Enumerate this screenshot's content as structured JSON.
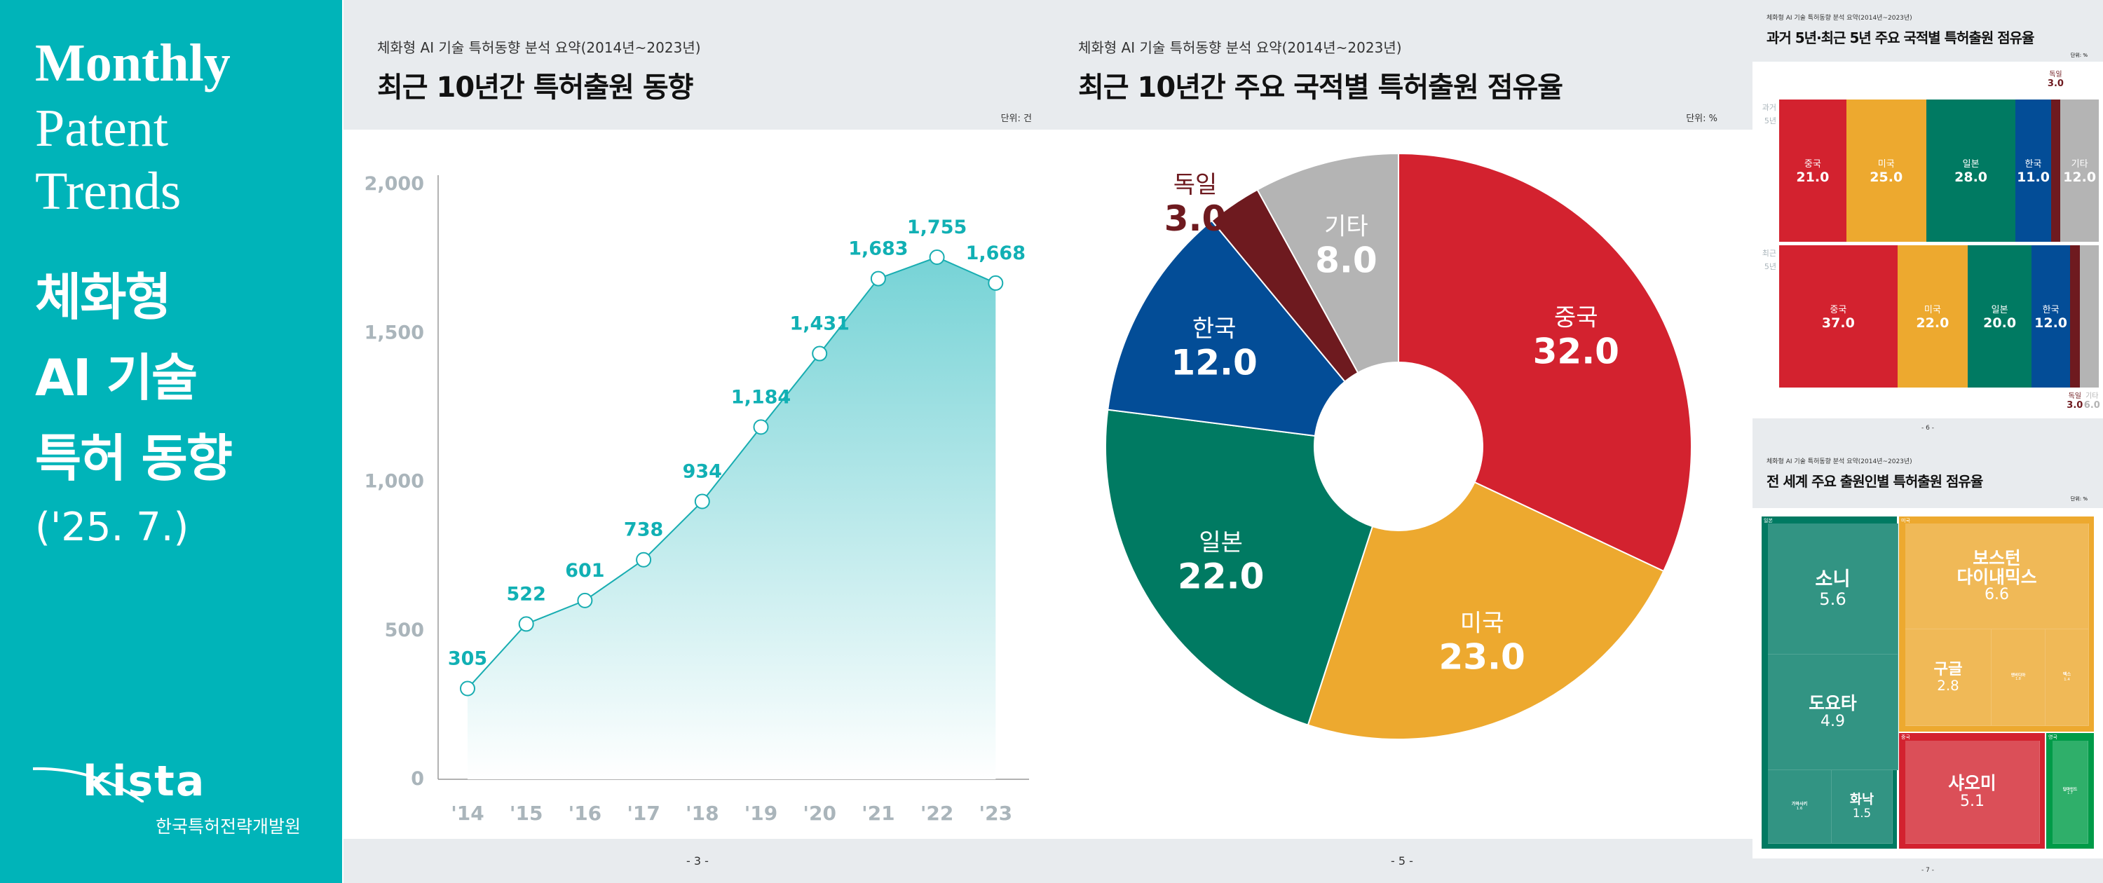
{
  "cover": {
    "title_en": [
      "Monthly",
      "Patent",
      "Trends"
    ],
    "title_ko": [
      "체화형",
      "AI 기술",
      "특허 동향"
    ],
    "date": "('25. 7.)",
    "logo_text": "kista",
    "org": "한국특허전략개발원"
  },
  "colors": {
    "teal": "#00b4b9",
    "china": "#d3222f",
    "usa": "#eda92f",
    "japan": "#007a62",
    "korea": "#034d97",
    "germany": "#6e1a1f",
    "other": "#b4b4b4",
    "uk": "#009b48"
  },
  "page3": {
    "subtitle": "체화형 AI 기술 특허동향 분석 요약(2014년~2023년)",
    "title": "최근 10년간 특허출원 동향",
    "unit": "단위: 건",
    "page": "- 3 -"
  },
  "page5": {
    "subtitle": "체화형 AI 기술 특허동향 분석 요약(2014년~2023년)",
    "title": "최근 10년간 주요 국적별 특허출원 점유율",
    "unit": "단위: %",
    "page": "- 5 -"
  },
  "page6": {
    "subtitle": "체화형 AI 기술 특허동향 분석 요약(2014년~2023년)",
    "title": "과거 5년·최근 5년 주요 국적별 특허출원 점유율",
    "unit": "단위: %",
    "page": "- 6 -"
  },
  "page7": {
    "subtitle": "체화형 AI 기술 특허동향 분석 요약(2014년~2023년)",
    "title": "전 세계 주요 출원인별 특허출원 점유율",
    "unit": "단위: %",
    "page": "- 7 -"
  },
  "chart_data": [
    {
      "type": "area",
      "title": "최근 10년간 특허출원 동향",
      "categories": [
        "'14",
        "'15",
        "'16",
        "'17",
        "'18",
        "'19",
        "'20",
        "'21",
        "'22",
        "'23"
      ],
      "values": [
        305,
        522,
        601,
        738,
        934,
        1184,
        1431,
        1683,
        1755,
        1668
      ],
      "value_labels": [
        "305",
        "522",
        "601",
        "738",
        "934",
        "1,184",
        "1,431",
        "1,683",
        "1,755",
        "1,668"
      ],
      "yticks": [
        "0",
        "500",
        "1,000",
        "1,500",
        "2,000"
      ],
      "ylim": [
        0,
        2000
      ],
      "ylabel": "단위: 건"
    },
    {
      "type": "pie",
      "title": "최근 10년간 주요 국적별 특허출원 점유율",
      "slices": [
        {
          "name": "중국",
          "value": 32.0,
          "label": "32.0",
          "color": "#d3222f"
        },
        {
          "name": "미국",
          "value": 23.0,
          "label": "23.0",
          "color": "#eda92f"
        },
        {
          "name": "일본",
          "value": 22.0,
          "label": "22.0",
          "color": "#007a62"
        },
        {
          "name": "한국",
          "value": 12.0,
          "label": "12.0",
          "color": "#034d97"
        },
        {
          "name": "독일",
          "value": 3.0,
          "label": "3.0",
          "color": "#6e1a1f"
        },
        {
          "name": "기타",
          "value": 8.0,
          "label": "8.0",
          "color": "#b4b4b4"
        }
      ]
    },
    {
      "type": "bar",
      "stacked": "100%",
      "title": "과거 5년·최근 5년 주요 국적별 특허출원 점유율",
      "categories": [
        "과거 5년",
        "최근 5년"
      ],
      "category_lines": [
        [
          "과거",
          "5년"
        ],
        [
          "최근",
          "5년"
        ]
      ],
      "series": [
        {
          "name": "중국",
          "values": [
            21.0,
            37.0
          ],
          "labels": [
            "21.0",
            "37.0"
          ],
          "color": "#d3222f"
        },
        {
          "name": "미국",
          "values": [
            25.0,
            22.0
          ],
          "labels": [
            "25.0",
            "22.0"
          ],
          "color": "#eda92f"
        },
        {
          "name": "일본",
          "values": [
            28.0,
            20.0
          ],
          "labels": [
            "28.0",
            "20.0"
          ],
          "color": "#007a62"
        },
        {
          "name": "한국",
          "values": [
            11.0,
            12.0
          ],
          "labels": [
            "11.0",
            "12.0"
          ],
          "color": "#034d97"
        },
        {
          "name": "독일",
          "values": [
            3.0,
            3.0
          ],
          "labels": [
            "3.0",
            "3.0"
          ],
          "color": "#6e1a1f"
        },
        {
          "name": "기타",
          "values": [
            12.0,
            6.0
          ],
          "labels": [
            "12.0",
            "6.0"
          ],
          "color": "#b4b4b4"
        }
      ]
    },
    {
      "type": "treemap",
      "title": "전 세계 주요 출원인별 특허출원 점유율",
      "groups": [
        {
          "name": "일본",
          "items": [
            {
              "name": "소니",
              "value": 5.6,
              "label": "5.6"
            },
            {
              "name": "도요타",
              "value": 4.9,
              "label": "4.9"
            },
            {
              "name": "가와사키",
              "value": 1.6,
              "label": "1.6"
            },
            {
              "name": "화낙",
              "value": 1.5,
              "label": "1.5"
            }
          ]
        },
        {
          "name": "미국",
          "items": [
            {
              "name": "보스턴 다이내믹스",
              "value": 6.6,
              "label": "6.6"
            },
            {
              "name": "구글",
              "value": 2.8,
              "label": "2.8"
            },
            {
              "name": "엔비디아",
              "value": 1.8,
              "label": "1.8"
            },
            {
              "name": "엑스",
              "value": 1.4,
              "label": "1.4"
            }
          ]
        },
        {
          "name": "중국",
          "items": [
            {
              "name": "샤오미",
              "value": 5.1,
              "label": "5.1"
            }
          ]
        },
        {
          "name": "영국",
          "items": [
            {
              "name": "딥마인드",
              "value": 1.7,
              "label": "1.7"
            }
          ]
        }
      ]
    }
  ]
}
